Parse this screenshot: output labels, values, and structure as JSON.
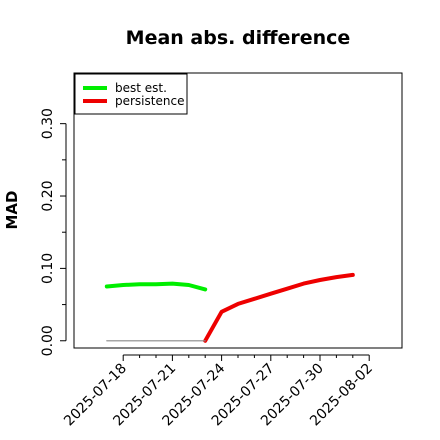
{
  "chart_data": {
    "type": "line",
    "title": "Mean abs. difference",
    "xlabel": "",
    "ylabel": "MAD",
    "xlim": [
      "2025-07-15",
      "2025-08-04"
    ],
    "ylim": [
      -0.01,
      0.37
    ],
    "x_ticks": [
      "2025-07-18",
      "2025-07-21",
      "2025-07-24",
      "2025-07-27",
      "2025-07-30",
      "2025-08-02"
    ],
    "y_ticks": [
      0.0,
      0.1,
      0.2,
      0.3
    ],
    "y_tick_labels": [
      "0.00",
      "0.10",
      "0.20",
      "0.30"
    ],
    "grid": false,
    "legend_position": "top-left",
    "series": [
      {
        "name": "best est.",
        "color": "#00ee00",
        "points": [
          {
            "x": "2025-07-17",
            "y": 0.075
          },
          {
            "x": "2025-07-18",
            "y": 0.077
          },
          {
            "x": "2025-07-19",
            "y": 0.078
          },
          {
            "x": "2025-07-20",
            "y": 0.078
          },
          {
            "x": "2025-07-21",
            "y": 0.079
          },
          {
            "x": "2025-07-22",
            "y": 0.077
          },
          {
            "x": "2025-07-23",
            "y": 0.071
          }
        ]
      },
      {
        "name": "persistence",
        "color": "#ee0000",
        "points": [
          {
            "x": "2025-07-23",
            "y": 0.0
          },
          {
            "x": "2025-07-24",
            "y": 0.04
          },
          {
            "x": "2025-07-25",
            "y": 0.051
          },
          {
            "x": "2025-07-26",
            "y": 0.058
          },
          {
            "x": "2025-07-27",
            "y": 0.065
          },
          {
            "x": "2025-07-28",
            "y": 0.072
          },
          {
            "x": "2025-07-29",
            "y": 0.079
          },
          {
            "x": "2025-07-30",
            "y": 0.084
          },
          {
            "x": "2025-07-31",
            "y": 0.088
          },
          {
            "x": "2025-08-01",
            "y": 0.091
          }
        ]
      },
      {
        "name": "",
        "color": "#888888",
        "points": [
          {
            "x": "2025-07-17",
            "y": 0.0
          },
          {
            "x": "2025-07-23",
            "y": 0.0
          }
        ]
      }
    ]
  }
}
